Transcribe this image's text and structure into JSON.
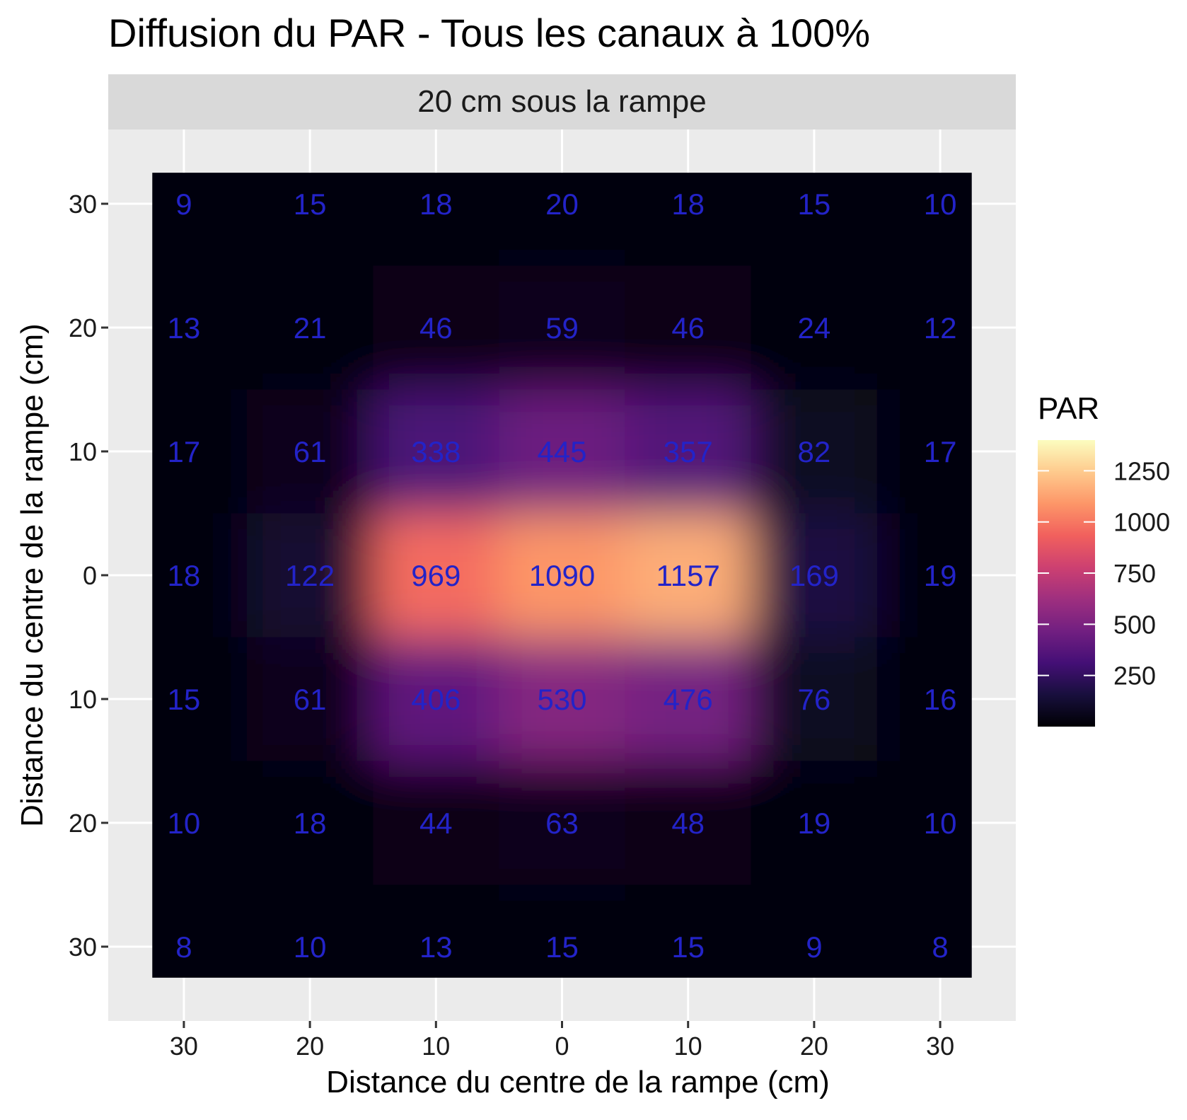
{
  "chart_data": {
    "type": "heatmap",
    "title": "Diffusion du PAR - Tous les canaux à 100%",
    "facet_label": "20 cm sous la rampe",
    "xlabel": "Distance du centre de la rampe (cm)",
    "ylabel": "Distance du centre de la rampe (cm)",
    "x": [
      -30,
      -20,
      -10,
      0,
      10,
      20,
      30
    ],
    "y": [
      30,
      20,
      10,
      0,
      -10,
      -20,
      -30
    ],
    "x_tick_labels": [
      "30",
      "20",
      "10",
      "0",
      "10",
      "20",
      "30"
    ],
    "y_tick_labels": [
      "30",
      "20",
      "10",
      "0",
      "10",
      "20",
      "30"
    ],
    "xlim": [
      -36,
      36
    ],
    "ylim": [
      -36,
      36
    ],
    "values": [
      [
        9,
        15,
        18,
        20,
        18,
        15,
        10
      ],
      [
        13,
        21,
        46,
        59,
        46,
        24,
        12
      ],
      [
        17,
        61,
        338,
        445,
        357,
        82,
        17
      ],
      [
        18,
        122,
        969,
        1090,
        1157,
        169,
        19
      ],
      [
        15,
        61,
        406,
        530,
        476,
        76,
        16
      ],
      [
        10,
        18,
        44,
        63,
        48,
        19,
        10
      ],
      [
        8,
        10,
        13,
        15,
        15,
        9,
        8
      ]
    ],
    "legend": {
      "title": "PAR",
      "placement": "right",
      "range": [
        0,
        1400
      ],
      "breaks": [
        1250,
        1000,
        750,
        500,
        250
      ],
      "break_labels": [
        "1250",
        "1000",
        "750",
        "500",
        "250"
      ]
    },
    "colors": {
      "panel_background": "#ebebeb",
      "grid": "#ffffff",
      "strip_background": "#d9d9d9",
      "cell_label": "#2323c8",
      "colormap": [
        "#000004",
        "#180f3d",
        "#440f76",
        "#721f81",
        "#9e2f7f",
        "#cd4071",
        "#f1605d",
        "#fd9668",
        "#feca8d",
        "#fcfdbf"
      ]
    }
  }
}
